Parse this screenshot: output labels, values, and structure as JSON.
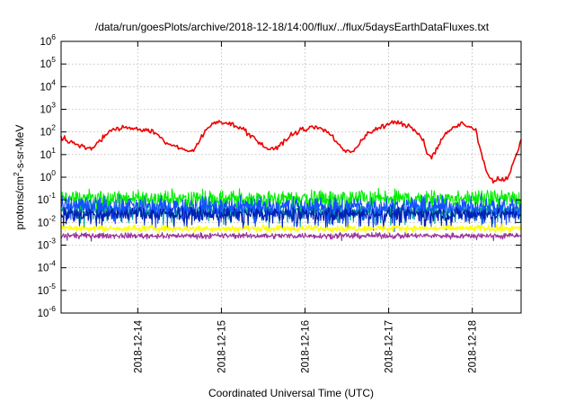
{
  "chart_data": {
    "type": "line",
    "title": "/data/run/goesPlots/archive/2018-12-18/14:00/flux/../flux/5daysEarthDataFluxes.txt",
    "xlabel": "Coordinated Universal Time (UTC)",
    "ylabel": "protons/cm²-s-sr-MeV",
    "ylabel_parts": {
      "before": "protons/cm",
      "sup": "2",
      "after": "-s-sr-MeV"
    },
    "y_scale": "log",
    "ylim": [
      1e-06,
      1000000.0
    ],
    "y_ticks": [
      {
        "value": 1e-06,
        "base": "10",
        "exp": "-6"
      },
      {
        "value": 1e-05,
        "base": "10",
        "exp": "-5"
      },
      {
        "value": 0.0001,
        "base": "10",
        "exp": "-4"
      },
      {
        "value": 0.001,
        "base": "10",
        "exp": "-3"
      },
      {
        "value": 0.01,
        "base": "10",
        "exp": "-2"
      },
      {
        "value": 0.1,
        "base": "10",
        "exp": "-1"
      },
      {
        "value": 1,
        "base": "10",
        "exp": "0"
      },
      {
        "value": 10,
        "base": "10",
        "exp": "1"
      },
      {
        "value": 100,
        "base": "10",
        "exp": "2"
      },
      {
        "value": 1000,
        "base": "10",
        "exp": "3"
      },
      {
        "value": 10000,
        "base": "10",
        "exp": "4"
      },
      {
        "value": 100000,
        "base": "10",
        "exp": "5"
      },
      {
        "value": 1000000,
        "base": "10",
        "exp": "6"
      }
    ],
    "xlim": [
      "2018-12-13T02:00",
      "2018-12-18T14:00"
    ],
    "x_ticks": [
      "2018-12-14",
      "2018-12-15",
      "2018-12-16",
      "2018-12-17",
      "2018-12-18"
    ],
    "grid": true,
    "series": [
      {
        "color": "#ee0000",
        "noise": 0.09,
        "points": [
          [
            "2018-12-13T02:00",
            60
          ],
          [
            "2018-12-13T04:00",
            40
          ],
          [
            "2018-12-13T06:00",
            30
          ],
          [
            "2018-12-13T08:00",
            24
          ],
          [
            "2018-12-13T10:00",
            16
          ],
          [
            "2018-12-13T12:00",
            25
          ],
          [
            "2018-12-13T14:00",
            60
          ],
          [
            "2018-12-13T16:00",
            100
          ],
          [
            "2018-12-13T18:00",
            140
          ],
          [
            "2018-12-13T21:00",
            160
          ],
          [
            "2018-12-14T00:00",
            140
          ],
          [
            "2018-12-14T04:00",
            110
          ],
          [
            "2018-12-14T06:00",
            70
          ],
          [
            "2018-12-14T08:00",
            35
          ],
          [
            "2018-12-14T10:00",
            25
          ],
          [
            "2018-12-14T12:00",
            20
          ],
          [
            "2018-12-14T14:00",
            13
          ],
          [
            "2018-12-14T16:00",
            15
          ],
          [
            "2018-12-14T18:00",
            50
          ],
          [
            "2018-12-14T20:00",
            140
          ],
          [
            "2018-12-14T22:00",
            270
          ],
          [
            "2018-12-15T00:00",
            300
          ],
          [
            "2018-12-15T02:00",
            230
          ],
          [
            "2018-12-15T04:00",
            200
          ],
          [
            "2018-12-15T06:00",
            140
          ],
          [
            "2018-12-15T08:00",
            80
          ],
          [
            "2018-12-15T10:00",
            45
          ],
          [
            "2018-12-15T12:00",
            25
          ],
          [
            "2018-12-15T14:00",
            15
          ],
          [
            "2018-12-15T16:00",
            20
          ],
          [
            "2018-12-15T18:00",
            40
          ],
          [
            "2018-12-15T20:00",
            70
          ],
          [
            "2018-12-15T22:00",
            110
          ],
          [
            "2018-12-16T00:00",
            130
          ],
          [
            "2018-12-16T02:00",
            160
          ],
          [
            "2018-12-16T04:00",
            150
          ],
          [
            "2018-12-16T06:00",
            110
          ],
          [
            "2018-12-16T08:00",
            60
          ],
          [
            "2018-12-16T10:00",
            25
          ],
          [
            "2018-12-16T12:00",
            12
          ],
          [
            "2018-12-16T14:00",
            15
          ],
          [
            "2018-12-16T16:00",
            40
          ],
          [
            "2018-12-16T18:00",
            90
          ],
          [
            "2018-12-16T20:00",
            120
          ],
          [
            "2018-12-16T22:00",
            160
          ],
          [
            "2018-12-17T00:00",
            230
          ],
          [
            "2018-12-17T02:00",
            260
          ],
          [
            "2018-12-17T04:00",
            220
          ],
          [
            "2018-12-17T06:00",
            160
          ],
          [
            "2018-12-17T08:00",
            110
          ],
          [
            "2018-12-17T10:00",
            40
          ],
          [
            "2018-12-17T11:00",
            10
          ],
          [
            "2018-12-17T12:00",
            8
          ],
          [
            "2018-12-17T13:00",
            12
          ],
          [
            "2018-12-17T14:00",
            20
          ],
          [
            "2018-12-17T16:00",
            70
          ],
          [
            "2018-12-17T18:00",
            140
          ],
          [
            "2018-12-17T20:00",
            200
          ],
          [
            "2018-12-17T21:00",
            220
          ],
          [
            "2018-12-17T23:00",
            170
          ],
          [
            "2018-12-18T00:00",
            150
          ],
          [
            "2018-12-18T01:00",
            110
          ],
          [
            "2018-12-18T02:00",
            25
          ],
          [
            "2018-12-18T03:00",
            6
          ],
          [
            "2018-12-18T04:00",
            2
          ],
          [
            "2018-12-18T05:00",
            1
          ],
          [
            "2018-12-18T06:00",
            0.6
          ],
          [
            "2018-12-18T07:00",
            0.8
          ],
          [
            "2018-12-18T08:00",
            0.9
          ],
          [
            "2018-12-18T09:00",
            0.7
          ],
          [
            "2018-12-18T10:00",
            1
          ],
          [
            "2018-12-18T11:00",
            2
          ],
          [
            "2018-12-18T12:00",
            5
          ],
          [
            "2018-12-18T13:00",
            15
          ],
          [
            "2018-12-18T14:00",
            45
          ]
        ]
      },
      {
        "color": "#00ee00",
        "baseline": 0.12,
        "noise": 0.28,
        "dip_rate": 0.12,
        "dip_depth": 0.45
      },
      {
        "color": "#00a0a0",
        "baseline": 0.035,
        "noise": 0.18,
        "dip_rate": 0.1,
        "dip_depth": 0.4
      },
      {
        "color": "#1450ff",
        "baseline": 0.055,
        "noise": 0.32,
        "dip_rate": 0.18,
        "dip_depth": 0.55
      },
      {
        "color": "#0020b0",
        "baseline": 0.025,
        "noise": 0.22,
        "dip_rate": 0.12,
        "dip_depth": 0.35
      },
      {
        "color": "#ffff00",
        "baseline": 0.0055,
        "noise": 0.12,
        "dip_rate": 0.02,
        "dip_depth": 0.15
      },
      {
        "color": "#993399",
        "baseline": 0.0026,
        "noise": 0.1,
        "dip_rate": 0.02,
        "dip_depth": 0.1
      }
    ]
  }
}
